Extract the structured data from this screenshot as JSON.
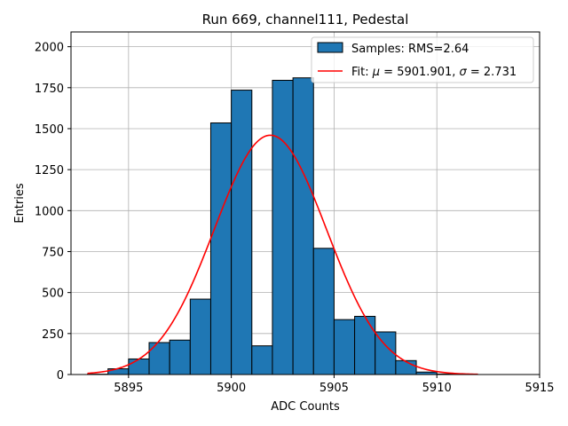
{
  "chart_data": {
    "type": "bar",
    "title": "Run 669, channel111, Pedestal",
    "xlabel": "ADC Counts",
    "ylabel": "Entries",
    "xlim": [
      5892.2,
      5915
    ],
    "ylim": [
      0,
      2090
    ],
    "grid": true,
    "legend_position": "top-right",
    "bar_color": "#1f77b4",
    "fit_color": "#ff0000",
    "x_ticks": [
      5895,
      5900,
      5905,
      5910,
      5915
    ],
    "y_ticks": [
      0,
      250,
      500,
      750,
      1000,
      1250,
      1500,
      1750,
      2000
    ],
    "bins": [
      {
        "x0": 5893,
        "x1": 5894,
        "value": 2
      },
      {
        "x0": 5894,
        "x1": 5895,
        "value": 35
      },
      {
        "x0": 5895,
        "x1": 5896,
        "value": 95
      },
      {
        "x0": 5896,
        "x1": 5897,
        "value": 195
      },
      {
        "x0": 5897,
        "x1": 5898,
        "value": 210
      },
      {
        "x0": 5898,
        "x1": 5899,
        "value": 460
      },
      {
        "x0": 5899,
        "x1": 5900,
        "value": 1535
      },
      {
        "x0": 5900,
        "x1": 5901,
        "value": 1735
      },
      {
        "x0": 5901,
        "x1": 5902,
        "value": 175
      },
      {
        "x0": 5902,
        "x1": 5903,
        "value": 1795
      },
      {
        "x0": 5903,
        "x1": 5904,
        "value": 1810
      },
      {
        "x0": 5904,
        "x1": 5905,
        "value": 770
      },
      {
        "x0": 5905,
        "x1": 5906,
        "value": 335
      },
      {
        "x0": 5906,
        "x1": 5907,
        "value": 355
      },
      {
        "x0": 5907,
        "x1": 5908,
        "value": 260
      },
      {
        "x0": 5908,
        "x1": 5909,
        "value": 85
      },
      {
        "x0": 5909,
        "x1": 5910,
        "value": 15
      },
      {
        "x0": 5910,
        "x1": 5911,
        "value": 3
      }
    ],
    "fit": {
      "mu": 5901.901,
      "sigma": 2.731,
      "amplitude": 1460,
      "x_range": [
        5893,
        5912
      ]
    },
    "legend": [
      {
        "label": "Samples: RMS=2.64",
        "kind": "patch"
      },
      {
        "label_prefix": "Fit: ",
        "mu_symbol": "μ",
        "mu_text": " = 5901.901, ",
        "sigma_symbol": "σ",
        "sigma_text": " = 2.731",
        "kind": "line"
      }
    ]
  }
}
